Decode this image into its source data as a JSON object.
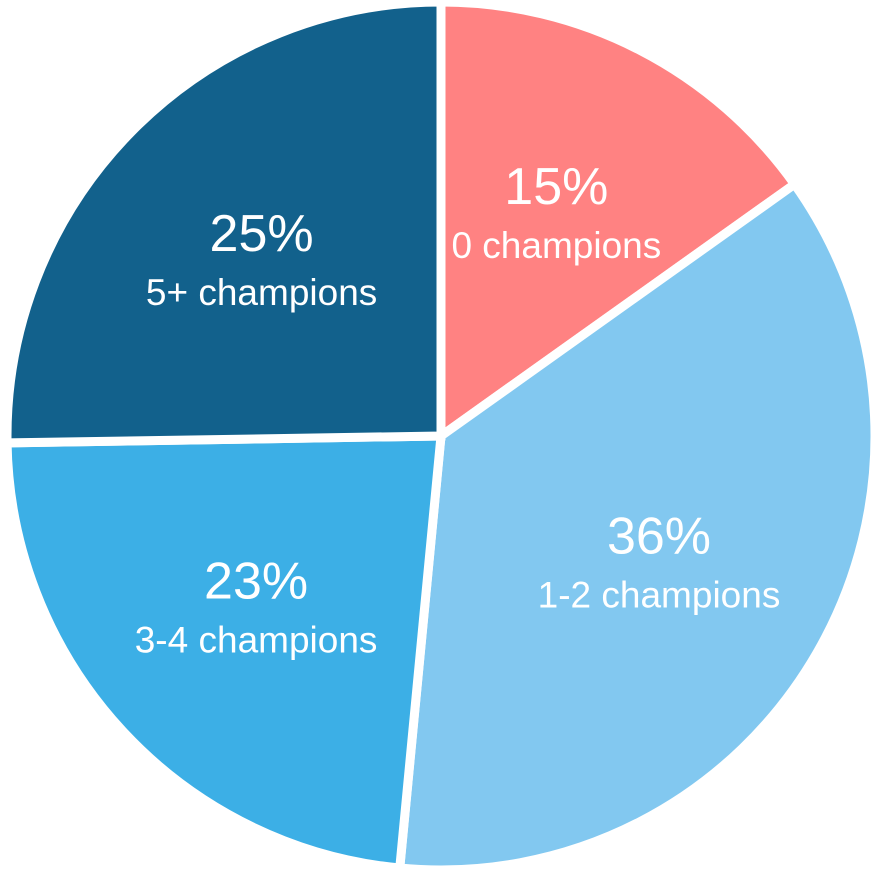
{
  "chart_data": {
    "type": "pie",
    "categories": [
      "0 champions",
      "1-2 champions",
      "3-4 champions",
      "5+ champions"
    ],
    "values": [
      15,
      36,
      23,
      25
    ],
    "value_labels": [
      "15%",
      "36%",
      "23%",
      "25%"
    ],
    "colors": [
      "#ff8282",
      "#82c8f0",
      "#3cafe6",
      "#12618c"
    ]
  }
}
